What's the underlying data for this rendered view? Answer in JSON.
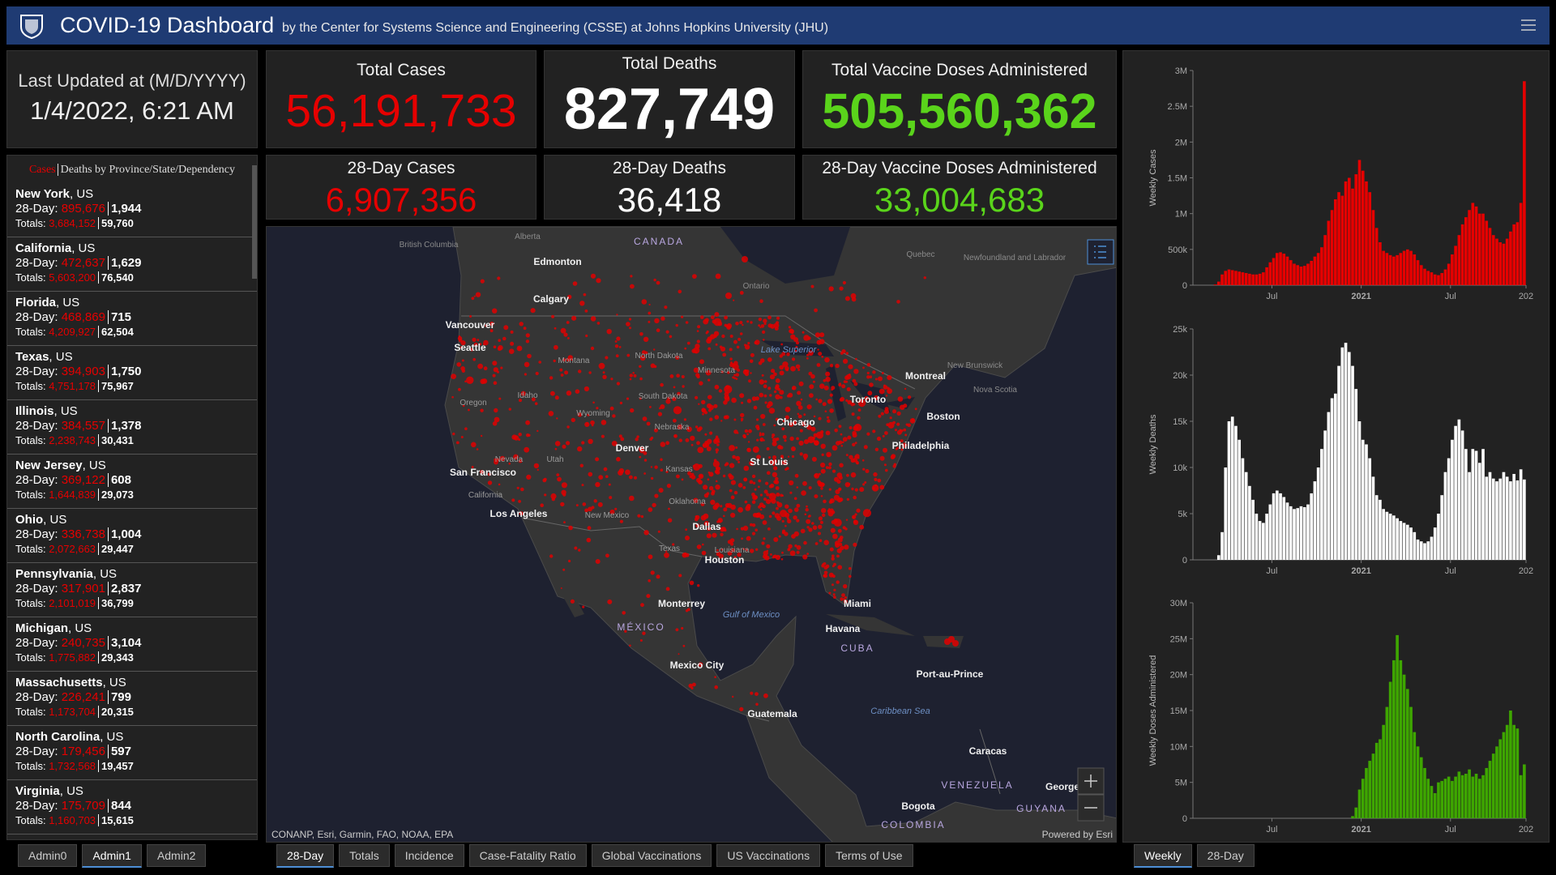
{
  "header": {
    "title": "COVID-19 Dashboard",
    "subtitle": "by the Center for Systems Science and Engineering (CSSE) at Johns Hopkins University (JHU)"
  },
  "stats": {
    "updated_label": "Last Updated at (M/D/YYYY)",
    "updated": "1/4/2022, 6:21 AM",
    "total_cases_label": "Total Cases",
    "total_cases": "56,191,733",
    "total_deaths_label": "Total Deaths",
    "total_deaths": "827,749",
    "total_vaccine_label": "Total Vaccine Doses Administered",
    "total_vaccine": "505,560,362",
    "cases28_label": "28-Day Cases",
    "cases28": "6,907,356",
    "deaths28_label": "28-Day Deaths",
    "deaths28": "36,418",
    "vaccine28_label": "28-Day Vaccine Doses Administered",
    "vaccine28": "33,004,683"
  },
  "list": {
    "title_cases": "Cases",
    "title_rest": "Deaths by Province/State/Dependency",
    "label_28": "28-Day:",
    "label_totals": "Totals:",
    "items": [
      {
        "name": "New York",
        "country": ", US",
        "cases28": "895,676",
        "deaths28": "1,944",
        "cases": "3,684,152",
        "deaths": "59,760"
      },
      {
        "name": "California",
        "country": ", US",
        "cases28": "472,637",
        "deaths28": "1,629",
        "cases": "5,603,200",
        "deaths": "76,540"
      },
      {
        "name": "Florida",
        "country": ", US",
        "cases28": "468,869",
        "deaths28": "715",
        "cases": "4,209,927",
        "deaths": "62,504"
      },
      {
        "name": "Texas",
        "country": ", US",
        "cases28": "394,903",
        "deaths28": "1,750",
        "cases": "4,751,178",
        "deaths": "75,967"
      },
      {
        "name": "Illinois",
        "country": ", US",
        "cases28": "384,557",
        "deaths28": "1,378",
        "cases": "2,238,743",
        "deaths": "30,431"
      },
      {
        "name": "New Jersey",
        "country": ", US",
        "cases28": "369,122",
        "deaths28": "608",
        "cases": "1,644,839",
        "deaths": "29,073"
      },
      {
        "name": "Ohio",
        "country": ", US",
        "cases28": "336,738",
        "deaths28": "1,004",
        "cases": "2,072,663",
        "deaths": "29,447"
      },
      {
        "name": "Pennsylvania",
        "country": ", US",
        "cases28": "317,901",
        "deaths28": "2,837",
        "cases": "2,101,019",
        "deaths": "36,799"
      },
      {
        "name": "Michigan",
        "country": ", US",
        "cases28": "240,735",
        "deaths28": "3,104",
        "cases": "1,775,882",
        "deaths": "29,343"
      },
      {
        "name": "Massachusetts",
        "country": ", US",
        "cases28": "226,241",
        "deaths28": "799",
        "cases": "1,173,704",
        "deaths": "20,315"
      },
      {
        "name": "North Carolina",
        "country": ", US",
        "cases28": "179,456",
        "deaths28": "597",
        "cases": "1,732,568",
        "deaths": "19,457"
      },
      {
        "name": "Virginia",
        "country": ", US",
        "cases28": "175,709",
        "deaths28": "844",
        "cases": "1,160,703",
        "deaths": "15,615"
      }
    ]
  },
  "map": {
    "attribution": "CONANP, Esri, Garmin, FAO, NOAA, EPA",
    "powered_by": "Powered by Esri",
    "labels": [
      "CANADA",
      "Alberta",
      "British Columbia",
      "Edmonton",
      "Calgary",
      "Vancouver",
      "Seattle",
      "Montana",
      "North Dakota",
      "Minnesota",
      "South Dakota",
      "Idaho",
      "Oregon",
      "Wyoming",
      "Nebraska",
      "Nevada",
      "Utah",
      "Denver",
      "San Francisco",
      "California",
      "Kansas",
      "Los Angeles",
      "New Mexico",
      "Oklahoma",
      "Dallas",
      "Texas",
      "Louisiana",
      "Houston",
      "Chicago",
      "St Louis",
      "Toronto",
      "Montreal",
      "Boston",
      "Philadelphia",
      "Ontario",
      "Quebec",
      "Newfoundland and Labrador",
      "New Brunswick",
      "Nova Scotia",
      "Lake Superior",
      "Miami",
      "Havana",
      "CUBA",
      "Monterrey",
      "MÉXICO",
      "Gulf of Mexico",
      "Mexico City",
      "Guatemala",
      "Caribbean Sea",
      "Port-au-Prince",
      "Caracas",
      "VENEZUELA",
      "Bogota",
      "COLOMBIA",
      "GUYANA",
      "George"
    ]
  },
  "tabs": {
    "left": [
      "Admin0",
      "Admin1",
      "Admin2"
    ],
    "middle": [
      "28-Day",
      "Totals",
      "Incidence",
      "Case-Fatality Ratio",
      "Global Vaccinations",
      "US Vaccinations",
      "Terms of Use"
    ],
    "right": [
      "Weekly",
      "28-Day"
    ]
  },
  "chart_data": [
    {
      "type": "bar",
      "y_label": "Weekly Cases",
      "color": "#e60000",
      "xlim": [
        0,
        97
      ],
      "ylim": [
        0,
        3000000
      ],
      "yticks": [
        0,
        {
          "value": 500000,
          "label": "500k"
        },
        {
          "value": 1000000,
          "label": "1M"
        },
        {
          "value": 1500000,
          "label": "1.5M"
        },
        {
          "value": 2000000,
          "label": "2M"
        },
        {
          "value": 2500000,
          "label": "2.5M"
        },
        {
          "value": 3000000,
          "label": "3M"
        }
      ],
      "xticks": [
        {
          "value": 23,
          "label": "Jul"
        },
        {
          "value": 49,
          "label": "2021"
        },
        {
          "value": 75,
          "label": "Jul"
        },
        {
          "value": 97,
          "label": "202"
        }
      ],
      "values": [
        0,
        0,
        0,
        0,
        0,
        0,
        10000,
        50000,
        150000,
        200000,
        220000,
        210000,
        200000,
        190000,
        180000,
        170000,
        160000,
        150000,
        150000,
        160000,
        180000,
        250000,
        320000,
        380000,
        450000,
        460000,
        440000,
        400000,
        350000,
        300000,
        280000,
        260000,
        270000,
        300000,
        340000,
        400000,
        450000,
        530000,
        700000,
        900000,
        1050000,
        1200000,
        1300000,
        1250000,
        1450000,
        1500000,
        1350000,
        1550000,
        1750000,
        1600000,
        1450000,
        1300000,
        1050000,
        800000,
        600000,
        480000,
        450000,
        420000,
        400000,
        420000,
        450000,
        480000,
        500000,
        480000,
        430000,
        350000,
        280000,
        230000,
        200000,
        180000,
        150000,
        140000,
        170000,
        220000,
        300000,
        430000,
        550000,
        700000,
        850000,
        950000,
        1050000,
        1150000,
        1100000,
        1000000,
        1000000,
        900000,
        800000,
        700000,
        650000,
        600000,
        580000,
        650000,
        750000,
        850000,
        880000,
        1150000,
        2850000
      ]
    },
    {
      "type": "bar",
      "y_label": "Weekly Deaths",
      "color": "#ffffff",
      "xlim": [
        0,
        97
      ],
      "ylim": [
        0,
        25000
      ],
      "yticks": [
        0,
        {
          "value": 5000,
          "label": "5k"
        },
        {
          "value": 10000,
          "label": "10k"
        },
        {
          "value": 15000,
          "label": "15k"
        },
        {
          "value": 20000,
          "label": "20k"
        },
        {
          "value": 25000,
          "label": "25k"
        }
      ],
      "xticks": [
        {
          "value": 23,
          "label": "Jul"
        },
        {
          "value": 49,
          "label": "2021"
        },
        {
          "value": 75,
          "label": "Jul"
        },
        {
          "value": 97,
          "label": "202"
        }
      ],
      "values": [
        0,
        0,
        0,
        0,
        0,
        0,
        0,
        500,
        3000,
        10000,
        15000,
        15500,
        14500,
        13000,
        11000,
        9500,
        8000,
        6500,
        5000,
        4200,
        4000,
        5000,
        6000,
        7200,
        7500,
        7200,
        6800,
        6200,
        5800,
        5500,
        5600,
        5800,
        5700,
        6000,
        7200,
        8500,
        10000,
        12000,
        14000,
        16000,
        17500,
        18000,
        21000,
        23000,
        23500,
        22500,
        21000,
        18500,
        15000,
        13000,
        12500,
        11000,
        9000,
        7000,
        6500,
        5500,
        5200,
        5000,
        4800,
        4500,
        4200,
        4000,
        3800,
        3500,
        3000,
        2200,
        2000,
        1800,
        2000,
        2500,
        3500,
        5000,
        7000,
        9500,
        11000,
        13000,
        14500,
        15200,
        14000,
        12000,
        9500,
        12000,
        11800,
        10500,
        12000,
        9000,
        9500,
        8800,
        8500,
        8800,
        9500,
        9000,
        8500,
        9300,
        8600,
        9800,
        8700
      ]
    },
    {
      "type": "bar",
      "y_label": "Weekly Doses Administered",
      "color": "#3ea600",
      "xlim": [
        0,
        97
      ],
      "ylim": [
        0,
        30000000
      ],
      "yticks": [
        0,
        {
          "value": 5000000,
          "label": "5M"
        },
        {
          "value": 10000000,
          "label": "10M"
        },
        {
          "value": 15000000,
          "label": "15M"
        },
        {
          "value": 20000000,
          "label": "20M"
        },
        {
          "value": 25000000,
          "label": "25M"
        },
        {
          "value": 30000000,
          "label": "30M"
        }
      ],
      "xticks": [
        {
          "value": 23,
          "label": "Jul"
        },
        {
          "value": 49,
          "label": "2021"
        },
        {
          "value": 75,
          "label": "Jul"
        },
        {
          "value": 97,
          "label": "202"
        }
      ],
      "values": [
        0,
        0,
        0,
        0,
        0,
        0,
        0,
        0,
        0,
        0,
        0,
        0,
        0,
        0,
        0,
        0,
        0,
        0,
        0,
        0,
        0,
        0,
        0,
        0,
        0,
        0,
        0,
        0,
        0,
        0,
        0,
        0,
        0,
        0,
        0,
        0,
        0,
        0,
        0,
        0,
        0,
        0,
        0,
        0,
        0,
        0,
        300000,
        1500000,
        4000000,
        5500000,
        7000000,
        8000000,
        9000000,
        10500000,
        11000000,
        13000000,
        15500000,
        19000000,
        22000000,
        25500000,
        22000000,
        20000000,
        18000000,
        15500000,
        12000000,
        10000000,
        8500000,
        7000000,
        5500000,
        4500000,
        3500000,
        5000000,
        5200000,
        5500000,
        5800000,
        5200000,
        5800000,
        6500000,
        6000000,
        6200000,
        6800000,
        5800000,
        6200000,
        5500000,
        6000000,
        7000000,
        8000000,
        9000000,
        10000000,
        11000000,
        12000000,
        13000000,
        15000000,
        13000000,
        12500000,
        6000000,
        7500000
      ]
    }
  ]
}
